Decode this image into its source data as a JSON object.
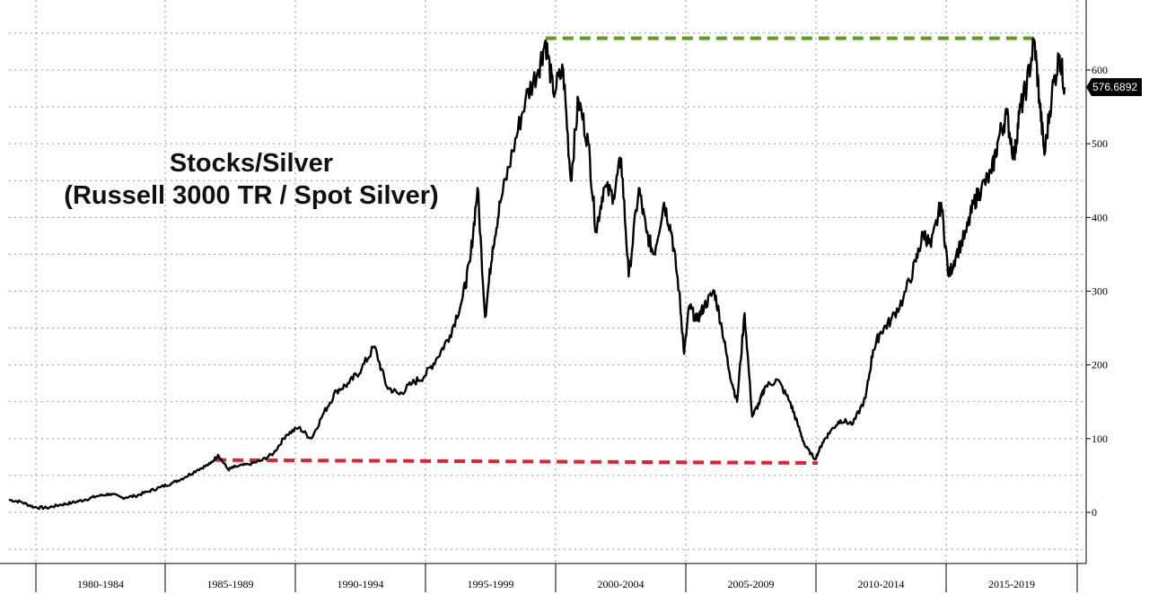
{
  "chart_data": {
    "type": "line",
    "title": "Stocks/Silver",
    "subtitle": "(Russell 3000 TR / Spot Silver)",
    "xlabel": "",
    "ylabel": "",
    "x_tick_labels": [
      "1980-1984",
      "1985-1989",
      "1990-1994",
      "1995-1999",
      "2000-2004",
      "2005-2009",
      "2010-2014",
      "2015-2019"
    ],
    "y_ticks": [
      0,
      100,
      200,
      300,
      400,
      500,
      600
    ],
    "ylim": [
      -50,
      700
    ],
    "xlim": [
      1979.0,
      2021.4
    ],
    "grid": true,
    "last_value_label": "576.6892",
    "last_value": 576.6892,
    "series": [
      {
        "values": [
          [
            1979.0,
            17
          ],
          [
            1979.5,
            14
          ],
          [
            1980.0,
            7
          ],
          [
            1980.5,
            6
          ],
          [
            1981.0,
            10
          ],
          [
            1981.5,
            13
          ],
          [
            1982.0,
            17
          ],
          [
            1982.5,
            22
          ],
          [
            1983.0,
            25
          ],
          [
            1983.5,
            20
          ],
          [
            1984.0,
            22
          ],
          [
            1984.5,
            28
          ],
          [
            1985.0,
            34
          ],
          [
            1985.5,
            40
          ],
          [
            1986.0,
            48
          ],
          [
            1986.5,
            58
          ],
          [
            1987.0,
            66
          ],
          [
            1987.3,
            78
          ],
          [
            1987.7,
            58
          ],
          [
            1988.0,
            62
          ],
          [
            1988.5,
            65
          ],
          [
            1989.0,
            70
          ],
          [
            1989.5,
            80
          ],
          [
            1990.0,
            105
          ],
          [
            1990.5,
            115
          ],
          [
            1991.0,
            100
          ],
          [
            1991.5,
            135
          ],
          [
            1992.0,
            165
          ],
          [
            1992.5,
            175
          ],
          [
            1993.0,
            195
          ],
          [
            1993.5,
            225
          ],
          [
            1994.0,
            170
          ],
          [
            1994.5,
            160
          ],
          [
            1995.0,
            175
          ],
          [
            1995.5,
            185
          ],
          [
            1996.0,
            210
          ],
          [
            1996.5,
            240
          ],
          [
            1997.0,
            290
          ],
          [
            1997.3,
            340
          ],
          [
            1997.6,
            440
          ],
          [
            1997.9,
            265
          ],
          [
            1998.2,
            360
          ],
          [
            1998.5,
            420
          ],
          [
            1999.0,
            490
          ],
          [
            1999.5,
            560
          ],
          [
            2000.0,
            600
          ],
          [
            2000.3,
            640
          ],
          [
            2000.6,
            570
          ],
          [
            2001.0,
            600
          ],
          [
            2001.3,
            450
          ],
          [
            2001.6,
            560
          ],
          [
            2002.0,
            500
          ],
          [
            2002.3,
            380
          ],
          [
            2002.6,
            440
          ],
          [
            2003.0,
            430
          ],
          [
            2003.3,
            480
          ],
          [
            2003.6,
            320
          ],
          [
            2004.0,
            440
          ],
          [
            2004.3,
            380
          ],
          [
            2004.6,
            350
          ],
          [
            2005.0,
            420
          ],
          [
            2005.3,
            380
          ],
          [
            2005.6,
            300
          ],
          [
            2005.8,
            215
          ],
          [
            2006.0,
            280
          ],
          [
            2006.3,
            260
          ],
          [
            2006.6,
            280
          ],
          [
            2007.0,
            300
          ],
          [
            2007.3,
            250
          ],
          [
            2007.6,
            190
          ],
          [
            2007.9,
            150
          ],
          [
            2008.2,
            270
          ],
          [
            2008.5,
            130
          ],
          [
            2008.8,
            150
          ],
          [
            2009.0,
            170
          ],
          [
            2009.5,
            180
          ],
          [
            2010.0,
            150
          ],
          [
            2010.3,
            120
          ],
          [
            2010.6,
            90
          ],
          [
            2011.0,
            72
          ],
          [
            2011.3,
            95
          ],
          [
            2011.6,
            110
          ],
          [
            2012.0,
            125
          ],
          [
            2012.5,
            120
          ],
          [
            2013.0,
            155
          ],
          [
            2013.3,
            220
          ],
          [
            2013.6,
            245
          ],
          [
            2014.0,
            260
          ],
          [
            2014.5,
            290
          ],
          [
            2015.0,
            340
          ],
          [
            2015.3,
            380
          ],
          [
            2015.6,
            360
          ],
          [
            2016.0,
            420
          ],
          [
            2016.3,
            320
          ],
          [
            2016.6,
            350
          ],
          [
            2017.0,
            380
          ],
          [
            2017.3,
            420
          ],
          [
            2017.6,
            440
          ],
          [
            2018.0,
            460
          ],
          [
            2018.3,
            510
          ],
          [
            2018.6,
            540
          ],
          [
            2018.9,
            480
          ],
          [
            2019.1,
            540
          ],
          [
            2019.4,
            580
          ],
          [
            2019.7,
            640
          ],
          [
            2019.9,
            560
          ],
          [
            2020.1,
            485
          ],
          [
            2020.4,
            570
          ],
          [
            2020.7,
            620
          ],
          [
            2020.9,
            576.6892
          ]
        ]
      }
    ],
    "colors": {
      "line": "#000000",
      "green_dashed_line": "#5a9f16",
      "red_dashed_line": "#e62030",
      "value_badge": "#000000"
    },
    "annotations": [
      {
        "type": "dashed-line",
        "color": "green",
        "from": [
          2000.3,
          643
        ],
        "to": [
          2019.7,
          643
        ]
      },
      {
        "type": "dashed-line",
        "color": "red",
        "from": [
          1987.2,
          71
        ],
        "to": [
          2011.1,
          67
        ]
      }
    ]
  }
}
